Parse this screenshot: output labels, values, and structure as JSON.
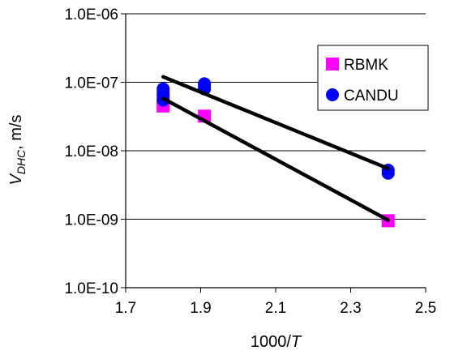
{
  "chart_data": {
    "type": "scatter",
    "xlabel": "1000/",
    "xlabel_italic": "T",
    "ylabel_main": "V",
    "ylabel_sub": "DHC",
    "ylabel_unit": ", m/s",
    "xlim": [
      1.7,
      2.5
    ],
    "ylim": [
      1e-10,
      1e-06
    ],
    "yscale": "log",
    "x_ticks": [
      1.7,
      1.9,
      2.1,
      2.3,
      2.5
    ],
    "x_tick_labels": [
      "1.7",
      "1.9",
      "2.1",
      "2.3",
      "2.5"
    ],
    "y_ticks": [
      1e-10,
      1e-09,
      1e-08,
      1e-07,
      1e-06
    ],
    "y_tick_labels": [
      "1.0E-10",
      "1.0E-09",
      "1.0E-08",
      "1.0E-07",
      "1.0E-06"
    ],
    "grid": "horizontal",
    "legend_position": "top-right",
    "series": [
      {
        "name": "RBMK",
        "marker": "square",
        "color": "#ff00ff",
        "x": [
          1.8,
          1.8,
          1.91,
          2.4
        ],
        "y": [
          4.5e-08,
          5.5e-08,
          3.2e-08,
          9.5e-10
        ]
      },
      {
        "name": "CANDU",
        "marker": "circle",
        "color": "#0000ff",
        "x": [
          1.8,
          1.8,
          1.8,
          1.8,
          1.91,
          1.91,
          1.91,
          2.4,
          2.4
        ],
        "y": [
          5.5e-08,
          6.5e-08,
          7.3e-08,
          8e-08,
          8e-08,
          8.8e-08,
          9.5e-08,
          4.7e-09,
          5.2e-09
        ]
      }
    ],
    "trendlines": [
      {
        "x": [
          1.8,
          2.4
        ],
        "y": [
          1.2e-07,
          5.5e-09
        ],
        "color": "#000000"
      },
      {
        "x": [
          1.8,
          2.4
        ],
        "y": [
          5.8e-08,
          9.7e-10
        ],
        "color": "#000000"
      }
    ]
  }
}
